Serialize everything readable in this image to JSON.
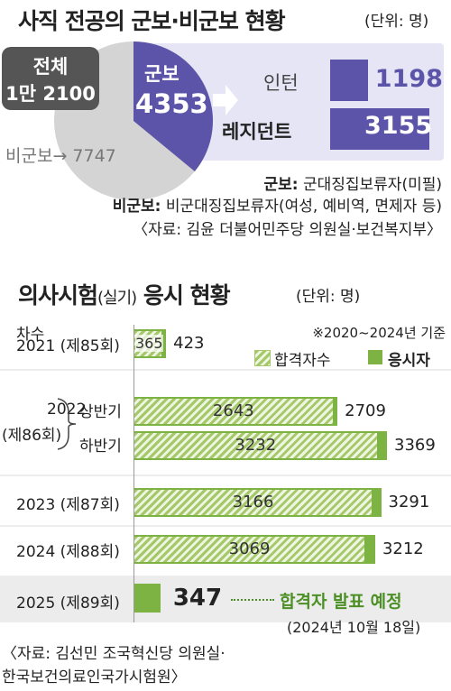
{
  "colors": {
    "purple": "#5b54a8",
    "gray_pie": "#d4d4d4",
    "dark_box": "#555555",
    "lavender": "#e6e5f5",
    "green_dark": "#7cb342",
    "green_hatch_a": "#a5c96a",
    "green_hatch_b": "#eef5e0",
    "row_bg": "#ececec",
    "announce_green": "#4c8f24"
  },
  "top": {
    "title": "사직 전공의 군보·비군보 현황",
    "unit": "(단위: 명)",
    "total_label": "전체",
    "total_value": "1만 2100",
    "gunbo_label": "군보",
    "gunbo_value": "4353",
    "bigunbo_label": "비군보→ 7747",
    "intern_label": "인턴",
    "intern_value": "1198",
    "resident_label": "레지던트",
    "resident_value": "3155",
    "def1_term": "군보:",
    "def1_text": "군대징집보류자(미필)",
    "def2_term": "비군보:",
    "def2_text": "비군대징집보류자(여성, 예비역, 면제자 등)",
    "source": "〈자료: 김윤 더불어민주당 의원실·보건복지부〉"
  },
  "chart_data": {
    "type": "bar",
    "title": "의사시험",
    "title_sub": "(실기)",
    "title_rest": "응시 현황",
    "unit": "(단위: 명)",
    "note": "※2020~2024년 기준",
    "column_header": "차수",
    "legend": {
      "pass": "합격자수",
      "applicants": "응시자"
    },
    "rows": [
      {
        "year": "2021",
        "round": "(제85회)",
        "half": "",
        "applicants": 423,
        "pass": 365,
        "applicants_label": "423",
        "pass_label": "365"
      },
      {
        "year": "2022",
        "round": "(제86회)",
        "half": "상반기",
        "applicants": 2709,
        "pass": 2643,
        "applicants_label": "2709",
        "pass_label": "2643"
      },
      {
        "year": "",
        "round": "",
        "half": "하반기",
        "applicants": 3369,
        "pass": 3232,
        "applicants_label": "3369",
        "pass_label": "3232"
      },
      {
        "year": "2023",
        "round": "(제87회)",
        "half": "",
        "applicants": 3291,
        "pass": 3166,
        "applicants_label": "3291",
        "pass_label": "3166"
      },
      {
        "year": "2024",
        "round": "(제88회)",
        "half": "",
        "applicants": 3212,
        "pass": 3069,
        "applicants_label": "3212",
        "pass_label": "3069"
      },
      {
        "year": "2025",
        "round": "(제89회)",
        "half": "",
        "applicants": 347,
        "pass": null,
        "applicants_label": "347",
        "pass_label": ""
      }
    ],
    "announce_text": "합격자 발표 예정",
    "announce_date": "(2024년 10월 18일)",
    "xlim": [
      0,
      3500
    ]
  },
  "source_bottom_1": "〈자료: 김선민 조국혁신당 의원실·",
  "source_bottom_2": "한국보건의료인국가시험원〉"
}
